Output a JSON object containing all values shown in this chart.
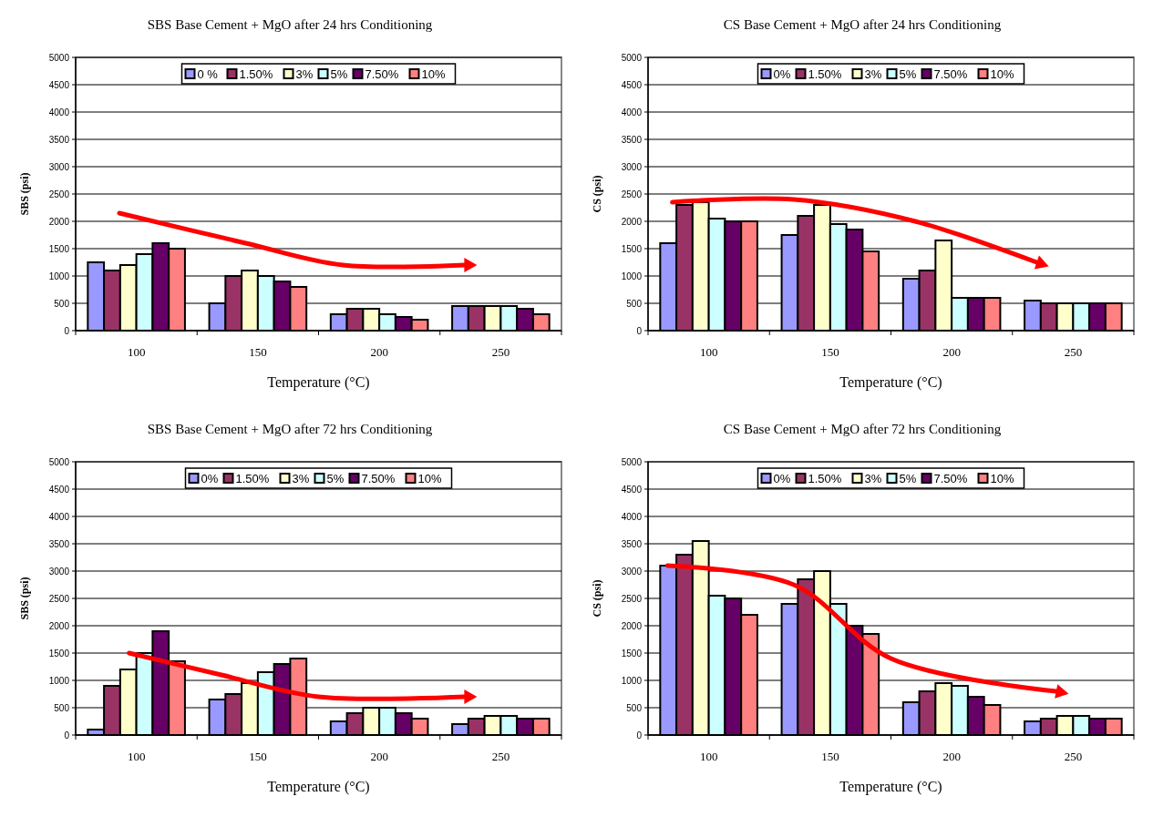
{
  "chart_data": [
    {
      "type": "bar",
      "title": "SBS Base Cement + MgO after 24 hrs Conditioning",
      "xlabel": "Temperature (°C)",
      "ylabel": "SBS (psi)",
      "categories": [
        "100",
        "150",
        "200",
        "250"
      ],
      "ylim": [
        0,
        5000
      ],
      "yticks": [
        0,
        500,
        1000,
        1500,
        2000,
        2500,
        3000,
        3500,
        4000,
        4500,
        5000
      ],
      "grid": "y",
      "legend": "top",
      "series": [
        {
          "name": "0 %",
          "color": "#9999ff",
          "values": [
            1250,
            500,
            300,
            450
          ]
        },
        {
          "name": "1.50%",
          "color": "#993366",
          "values": [
            1100,
            1000,
            400,
            450
          ]
        },
        {
          "name": "3%",
          "color": "#ffffcc",
          "values": [
            1200,
            1100,
            400,
            450
          ]
        },
        {
          "name": "5%",
          "color": "#ccffff",
          "values": [
            1400,
            1000,
            300,
            450
          ]
        },
        {
          "name": "7.50%",
          "color": "#660066",
          "values": [
            1600,
            900,
            250,
            400
          ]
        },
        {
          "name": "10%",
          "color": "#ff8080",
          "values": [
            1500,
            800,
            200,
            300
          ]
        }
      ]
    },
    {
      "type": "bar",
      "title": "CS Base Cement + MgO after 24 hrs Conditioning",
      "xlabel": "Temperature (°C)",
      "ylabel": "CS (psi)",
      "categories": [
        "100",
        "150",
        "200",
        "250"
      ],
      "ylim": [
        0,
        5000
      ],
      "yticks": [
        0,
        500,
        1000,
        1500,
        2000,
        2500,
        3000,
        3500,
        4000,
        4500,
        5000
      ],
      "grid": "y",
      "legend": "top",
      "series": [
        {
          "name": "0%",
          "color": "#9999ff",
          "values": [
            1600,
            1750,
            950,
            550
          ]
        },
        {
          "name": "1.50%",
          "color": "#993366",
          "values": [
            2300,
            2100,
            1100,
            500
          ]
        },
        {
          "name": "3%",
          "color": "#ffffcc",
          "values": [
            2350,
            2300,
            1650,
            500
          ]
        },
        {
          "name": "5%",
          "color": "#ccffff",
          "values": [
            2050,
            1950,
            600,
            500
          ]
        },
        {
          "name": "7.50%",
          "color": "#660066",
          "values": [
            2000,
            1850,
            600,
            500
          ]
        },
        {
          "name": "10%",
          "color": "#ff8080",
          "values": [
            2000,
            1450,
            600,
            500
          ]
        }
      ]
    },
    {
      "type": "bar",
      "title": "SBS Base Cement + MgO after 72 hrs Conditioning",
      "xlabel": "Temperature (°C)",
      "ylabel": "SBS (psi)",
      "categories": [
        "100",
        "150",
        "200",
        "250"
      ],
      "ylim": [
        0,
        5000
      ],
      "yticks": [
        0,
        500,
        1000,
        1500,
        2000,
        2500,
        3000,
        3500,
        4000,
        4500,
        5000
      ],
      "grid": "y",
      "legend": "top",
      "series": [
        {
          "name": "0%",
          "color": "#9999ff",
          "values": [
            100,
            650,
            250,
            200
          ]
        },
        {
          "name": "1.50%",
          "color": "#993366",
          "values": [
            900,
            750,
            400,
            300
          ]
        },
        {
          "name": "3%",
          "color": "#ffffcc",
          "values": [
            1200,
            950,
            500,
            350
          ]
        },
        {
          "name": "5%",
          "color": "#ccffff",
          "values": [
            1500,
            1150,
            500,
            350
          ]
        },
        {
          "name": "7.50%",
          "color": "#660066",
          "values": [
            1900,
            1300,
            400,
            300
          ]
        },
        {
          "name": "10%",
          "color": "#ff8080",
          "values": [
            1350,
            1400,
            300,
            300
          ]
        }
      ]
    },
    {
      "type": "bar",
      "title": "CS Base Cement + MgO after 72 hrs Conditioning",
      "xlabel": "Temperature (°C)",
      "ylabel": "CS (psi)",
      "categories": [
        "100",
        "150",
        "200",
        "250"
      ],
      "ylim": [
        0,
        5000
      ],
      "yticks": [
        0,
        500,
        1000,
        1500,
        2000,
        2500,
        3000,
        3500,
        4000,
        4500,
        5000
      ],
      "grid": "y",
      "legend": "top",
      "series": [
        {
          "name": "0%",
          "color": "#9999ff",
          "values": [
            3100,
            2400,
            600,
            250
          ]
        },
        {
          "name": "1.50%",
          "color": "#993366",
          "values": [
            3300,
            2850,
            800,
            300
          ]
        },
        {
          "name": "3%",
          "color": "#ffffcc",
          "values": [
            3550,
            3000,
            950,
            350
          ]
        },
        {
          "name": "5%",
          "color": "#ccffff",
          "values": [
            2550,
            2400,
            900,
            350
          ]
        },
        {
          "name": "7.50%",
          "color": "#660066",
          "values": [
            2500,
            2000,
            700,
            300
          ]
        },
        {
          "name": "10%",
          "color": "#ff8080",
          "values": [
            2200,
            1850,
            550,
            300
          ]
        }
      ]
    }
  ]
}
